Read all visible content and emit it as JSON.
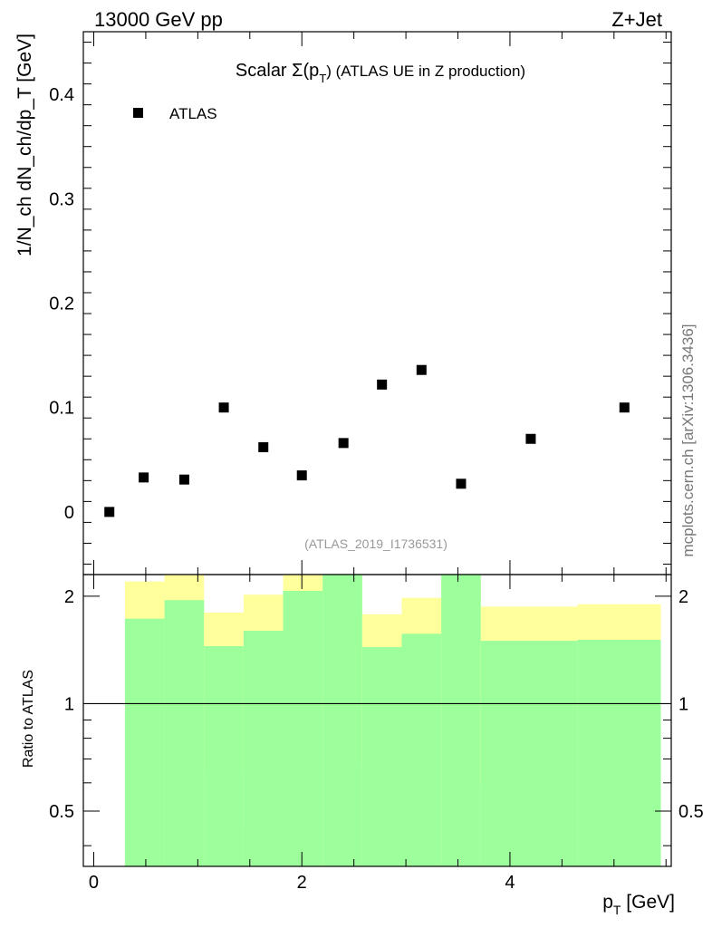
{
  "header": {
    "left": "13000 GeV pp",
    "right": "Z+Jet"
  },
  "side_label": "mcplots.cern.ch [arXiv:1306.3436]",
  "chart_data": [
    {
      "type": "scatter",
      "title_main": "Scalar Σ(p",
      "title_sub": "T",
      "title_rest": ") (ATLAS UE in Z production)",
      "ylabel": "1/N_ch dN_ch/dp_T [GeV]",
      "ylim": [
        -0.06,
        0.46
      ],
      "yticks": [
        0,
        0.1,
        0.2,
        0.3,
        0.4
      ],
      "ytick_labels": [
        "0",
        "0.1",
        "0.2",
        "0.3",
        "0.4"
      ],
      "xlim": [
        -0.1,
        5.55
      ],
      "legend": {
        "label": "ATLAS",
        "placement": "top-left"
      },
      "analysis_id": "(ATLAS_2019_I1736531)",
      "series": [
        {
          "name": "ATLAS",
          "x": [
            0.15,
            0.48,
            0.87,
            1.25,
            1.63,
            2.0,
            2.4,
            2.77,
            3.15,
            3.53,
            4.2,
            5.1
          ],
          "y": [
            0.0,
            0.033,
            0.031,
            0.1,
            0.062,
            0.035,
            0.066,
            0.122,
            0.136,
            0.027,
            0.07,
            0.1
          ]
        }
      ]
    },
    {
      "type": "area",
      "ylabel": "Ratio to ATLAS",
      "xlabel_main": "p",
      "xlabel_sub": "T",
      "xlabel_rest": " [GeV]",
      "ylim": [
        0.35,
        2.3
      ],
      "yticks": [
        0.5,
        1,
        2
      ],
      "ytick_labels": [
        "0.5",
        "1",
        "2"
      ],
      "xlim": [
        -0.1,
        5.55
      ],
      "xticks": [
        0,
        2,
        4
      ],
      "xtick_labels": [
        "0",
        "2",
        "4"
      ],
      "reference_line": 1,
      "bins": [
        {
          "lo": 0.3,
          "hi": 0.68,
          "inner": [
            0.0,
            1.73
          ],
          "outer": [
            0.0,
            2.2
          ]
        },
        {
          "lo": 0.68,
          "hi": 1.06,
          "inner": [
            0.0,
            1.95
          ],
          "outer": [
            0.0,
            2.3
          ]
        },
        {
          "lo": 1.06,
          "hi": 1.44,
          "inner": [
            0.0,
            1.45
          ],
          "outer": [
            0.65,
            1.8
          ]
        },
        {
          "lo": 1.44,
          "hi": 1.82,
          "inner": [
            0.0,
            1.6
          ],
          "outer": [
            0.45,
            2.02
          ]
        },
        {
          "lo": 1.82,
          "hi": 2.2,
          "inner": [
            0.0,
            2.07
          ],
          "outer": [
            0.0,
            2.3
          ]
        },
        {
          "lo": 2.2,
          "hi": 2.58,
          "inner": [
            0.0,
            2.3
          ],
          "outer": [
            0.0,
            2.3
          ]
        },
        {
          "lo": 2.58,
          "hi": 2.96,
          "inner": [
            0.0,
            1.44
          ],
          "outer": [
            0.67,
            1.78
          ]
        },
        {
          "lo": 2.96,
          "hi": 3.34,
          "inner": [
            0.0,
            1.57
          ],
          "outer": [
            0.5,
            1.98
          ]
        },
        {
          "lo": 3.34,
          "hi": 3.72,
          "inner": [
            0.0,
            2.3
          ],
          "outer": [
            0.0,
            2.3
          ]
        },
        {
          "lo": 3.72,
          "hi": 4.65,
          "inner": [
            0.0,
            1.5
          ],
          "outer": [
            0.59,
            1.87
          ]
        },
        {
          "lo": 4.65,
          "hi": 5.45,
          "inner": [
            0.0,
            1.51
          ],
          "outer": [
            0.56,
            1.9
          ]
        }
      ],
      "colors": {
        "inner": "#9cff9c",
        "outer": "#ffff9c"
      }
    }
  ]
}
